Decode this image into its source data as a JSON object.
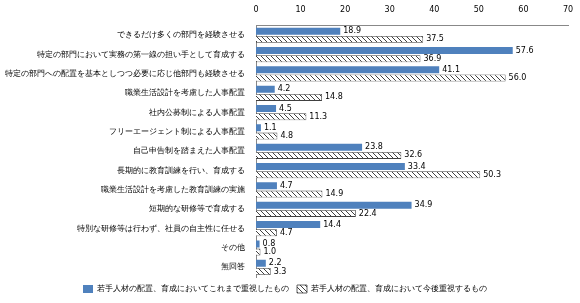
{
  "chart_data": {
    "type": "bar",
    "orientation": "horizontal",
    "categories": [
      "できるだけ多くの部門を経験させる",
      "特定の部門において実務の第一線の担い手として育成する",
      "特定の部門への配置を基本としつつ必要に応じ他部門も経験させる",
      "職業生活設計を考慮した人事配置",
      "社内公募制による人事配置",
      "フリーエージェント制による人事配置",
      "自己申告制を踏まえた人事配置",
      "長期的に教育訓練を行い、育成する",
      "職業生活設計を考慮した教育訓練の実施",
      "短期的な研修等で育成する",
      "特別な研修等は行わず、社員の自主性に任せる",
      "その他",
      "無回答"
    ],
    "series": [
      {
        "name": "若手人材の配置、育成においてこれまで重視したもの",
        "color": "#4f81bd",
        "marker": "solid",
        "values": [
          18.9,
          57.6,
          41.1,
          4.2,
          4.5,
          1.1,
          23.8,
          33.4,
          4.7,
          34.9,
          14.4,
          0.8,
          2.2
        ],
        "value_labels": [
          "18.9",
          "57.6",
          "41.1",
          "4.2",
          "4.5",
          "1.1",
          "23.8",
          "33.4",
          "4.7",
          "34.9",
          "14.4",
          "0.8",
          "2.2"
        ]
      },
      {
        "name": "若手人材の配置、育成において今後重視するもの",
        "color": "#404040",
        "marker": "hatch",
        "values": [
          37.5,
          36.9,
          56.0,
          14.8,
          11.3,
          4.8,
          32.6,
          50.3,
          14.9,
          22.4,
          4.7,
          1.0,
          3.3
        ],
        "value_labels": [
          "37.5",
          "36.9",
          "56.0",
          "14.8",
          "11.3",
          "4.8",
          "32.6",
          "50.3",
          "14.9",
          "22.4",
          "4.7",
          "1.0",
          "3.3"
        ]
      }
    ],
    "xlim": [
      0,
      70
    ],
    "xticks": [
      0,
      10,
      20,
      30,
      40,
      50,
      60,
      70
    ],
    "grid": false,
    "legend": "bottom",
    "data_labels": true
  }
}
